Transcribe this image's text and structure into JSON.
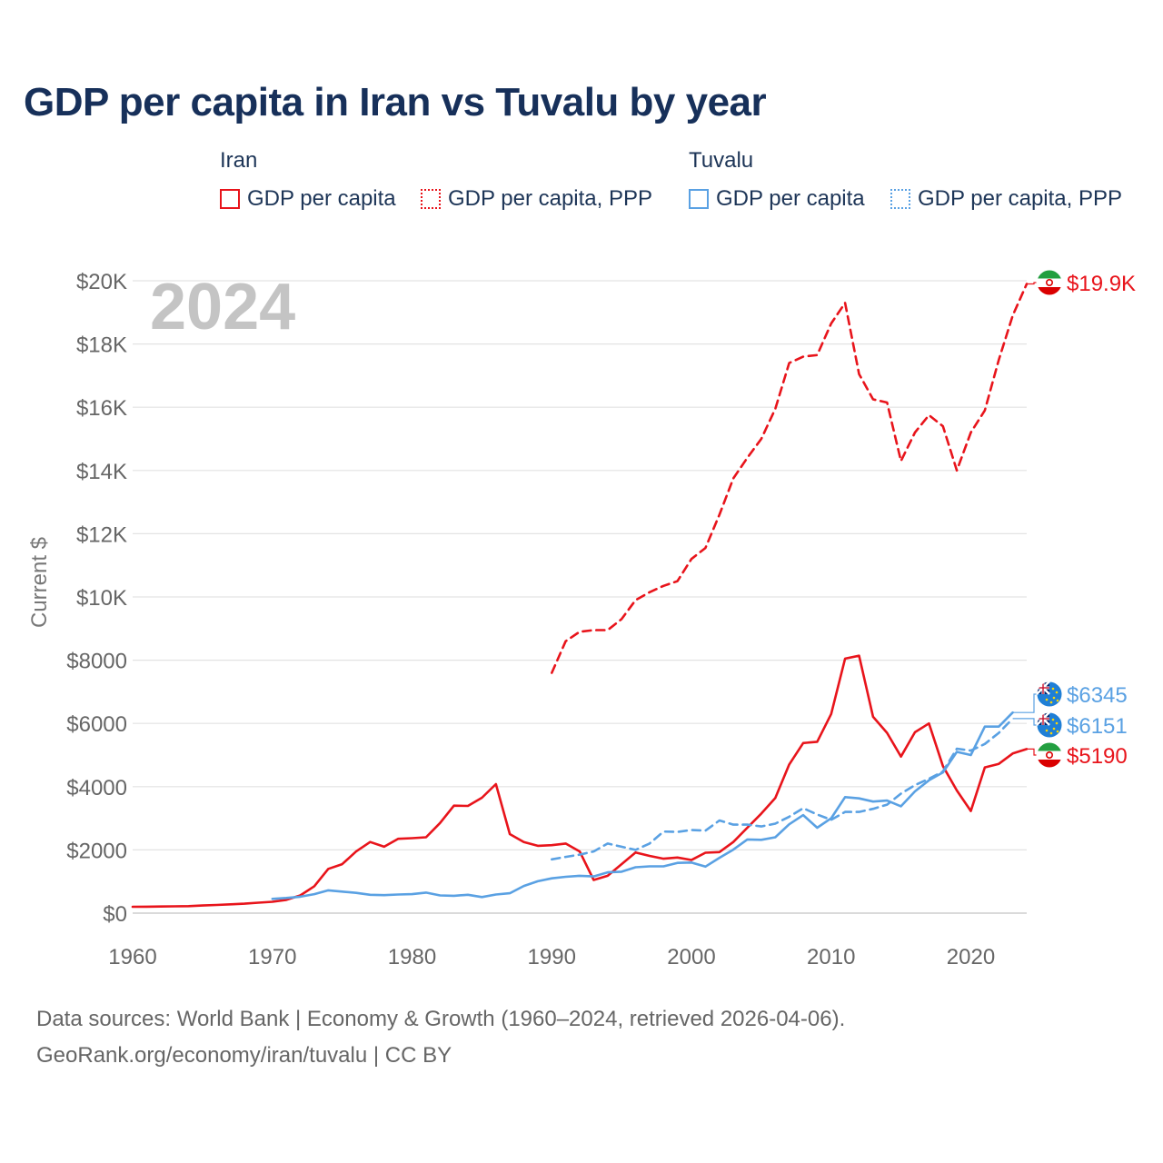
{
  "title": "GDP per capita in Iran vs Tuvalu by year",
  "legend": {
    "groups": [
      {
        "name": "Iran",
        "color": "#e8141b",
        "items": [
          {
            "label": "GDP per capita",
            "style": "solid"
          },
          {
            "label": "GDP per capita, PPP",
            "style": "dotted"
          }
        ]
      },
      {
        "name": "Tuvalu",
        "color": "#5aa1e3",
        "items": [
          {
            "label": "GDP per capita",
            "style": "solid"
          },
          {
            "label": "GDP per capita, PPP",
            "style": "dotted"
          }
        ]
      }
    ]
  },
  "year_watermark": "2024",
  "chart_data": {
    "type": "line",
    "title": "GDP per capita in Iran vs Tuvalu by year",
    "xlabel": "",
    "ylabel": "Current $",
    "xlim": [
      1960,
      2024
    ],
    "ylim": [
      0,
      20000
    ],
    "x_ticks": [
      1960,
      1970,
      1980,
      1990,
      2000,
      2010,
      2020
    ],
    "y_ticks": [
      0,
      2000,
      4000,
      6000,
      8000,
      10000,
      12000,
      14000,
      16000,
      18000,
      20000
    ],
    "y_tick_labels": [
      "$0",
      "$2000",
      "$4000",
      "$6000",
      "$8000",
      "$10K",
      "$12K",
      "$14K",
      "$16K",
      "$18K",
      "$20K"
    ],
    "series": [
      {
        "name": "Iran GDP per capita",
        "country": "Iran",
        "color": "#e8141b",
        "dash": "solid",
        "x": [
          1960,
          1961,
          1962,
          1963,
          1964,
          1965,
          1966,
          1967,
          1968,
          1969,
          1970,
          1971,
          1972,
          1973,
          1974,
          1975,
          1976,
          1977,
          1978,
          1979,
          1980,
          1981,
          1982,
          1983,
          1984,
          1985,
          1986,
          1987,
          1988,
          1989,
          1990,
          1991,
          1992,
          1993,
          1994,
          1995,
          1996,
          1997,
          1998,
          1999,
          2000,
          2001,
          2002,
          2003,
          2004,
          2005,
          2006,
          2007,
          2008,
          2009,
          2010,
          2011,
          2012,
          2013,
          2014,
          2015,
          2016,
          2017,
          2018,
          2019,
          2020,
          2021,
          2022,
          2023,
          2024
        ],
        "y": [
          200,
          205,
          210,
          215,
          220,
          240,
          260,
          280,
          300,
          330,
          360,
          420,
          560,
          850,
          1400,
          1550,
          1950,
          2250,
          2100,
          2350,
          2370,
          2400,
          2850,
          3400,
          3390,
          3650,
          4080,
          2500,
          2250,
          2130,
          2150,
          2200,
          1950,
          1050,
          1180,
          1550,
          1920,
          1810,
          1720,
          1760,
          1680,
          1910,
          1930,
          2250,
          2700,
          3150,
          3640,
          4700,
          5380,
          5420,
          6300,
          8050,
          8140,
          6210,
          5700,
          4950,
          5720,
          6000,
          4650,
          3880,
          3230,
          4610,
          4720,
          5050,
          5190
        ]
      },
      {
        "name": "Iran GDP per capita, PPP",
        "country": "Iran",
        "color": "#e8141b",
        "dash": "dotted",
        "x": [
          1990,
          1991,
          1992,
          1993,
          1994,
          1995,
          1996,
          1997,
          1998,
          1999,
          2000,
          2001,
          2002,
          2003,
          2004,
          2005,
          2006,
          2007,
          2008,
          2009,
          2010,
          2011,
          2012,
          2013,
          2014,
          2015,
          2016,
          2017,
          2018,
          2019,
          2020,
          2021,
          2022,
          2023,
          2024
        ],
        "y": [
          7600,
          8600,
          8900,
          8950,
          8950,
          9300,
          9900,
          10150,
          10350,
          10500,
          11200,
          11550,
          12600,
          13750,
          14400,
          15000,
          15950,
          17400,
          17600,
          17650,
          18650,
          19300,
          17050,
          16250,
          16150,
          14300,
          15200,
          15750,
          15400,
          14000,
          15200,
          15900,
          17500,
          18900,
          19900
        ]
      },
      {
        "name": "Tuvalu GDP per capita",
        "country": "Tuvalu",
        "color": "#5aa1e3",
        "dash": "solid",
        "x": [
          1970,
          1971,
          1972,
          1973,
          1974,
          1975,
          1976,
          1977,
          1978,
          1979,
          1980,
          1981,
          1982,
          1983,
          1984,
          1985,
          1986,
          1987,
          1988,
          1989,
          1990,
          1991,
          1992,
          1993,
          1994,
          1995,
          1996,
          1997,
          1998,
          1999,
          2000,
          2001,
          2002,
          2003,
          2004,
          2005,
          2006,
          2007,
          2008,
          2009,
          2010,
          2011,
          2012,
          2013,
          2014,
          2015,
          2016,
          2017,
          2018,
          2019,
          2020,
          2021,
          2022,
          2023
        ],
        "y": [
          450,
          480,
          520,
          600,
          720,
          680,
          640,
          580,
          570,
          590,
          600,
          650,
          560,
          550,
          580,
          510,
          590,
          630,
          860,
          1010,
          1100,
          1150,
          1180,
          1160,
          1290,
          1310,
          1450,
          1480,
          1480,
          1590,
          1600,
          1470,
          1750,
          2010,
          2330,
          2320,
          2400,
          2810,
          3100,
          2700,
          3000,
          3670,
          3630,
          3530,
          3560,
          3380,
          3850,
          4200,
          4450,
          5100,
          5000,
          5900,
          5900,
          6345
        ]
      },
      {
        "name": "Tuvalu GDP per capita, PPP",
        "country": "Tuvalu",
        "color": "#5aa1e3",
        "dash": "dotted",
        "x": [
          1990,
          1991,
          1992,
          1993,
          1994,
          1995,
          1996,
          1997,
          1998,
          1999,
          2000,
          2001,
          2002,
          2003,
          2004,
          2005,
          2006,
          2007,
          2008,
          2009,
          2010,
          2011,
          2012,
          2013,
          2014,
          2015,
          2016,
          2017,
          2018,
          2019,
          2020,
          2021,
          2022,
          2023
        ],
        "y": [
          1700,
          1780,
          1850,
          1950,
          2200,
          2100,
          2000,
          2200,
          2580,
          2570,
          2630,
          2610,
          2930,
          2800,
          2800,
          2740,
          2830,
          3050,
          3320,
          3120,
          2950,
          3200,
          3200,
          3300,
          3430,
          3780,
          4050,
          4250,
          4480,
          5200,
          5140,
          5350,
          5700,
          6151
        ]
      }
    ],
    "end_labels": [
      {
        "series": "Iran GDP per capita, PPP",
        "text": "$19.9K",
        "flag": "iran"
      },
      {
        "series": "Tuvalu GDP per capita",
        "text": "$6345",
        "flag": "tuvalu"
      },
      {
        "series": "Tuvalu GDP per capita, PPP",
        "text": "$6151",
        "flag": "tuvalu"
      },
      {
        "series": "Iran GDP per capita",
        "text": "$5190",
        "flag": "iran"
      }
    ]
  },
  "footer": {
    "line1": "Data sources: World Bank | Economy & Growth (1960–2024, retrieved 2026-04-06).",
    "line2": "GeoRank.org/economy/iran/tuvalu | CC BY"
  }
}
